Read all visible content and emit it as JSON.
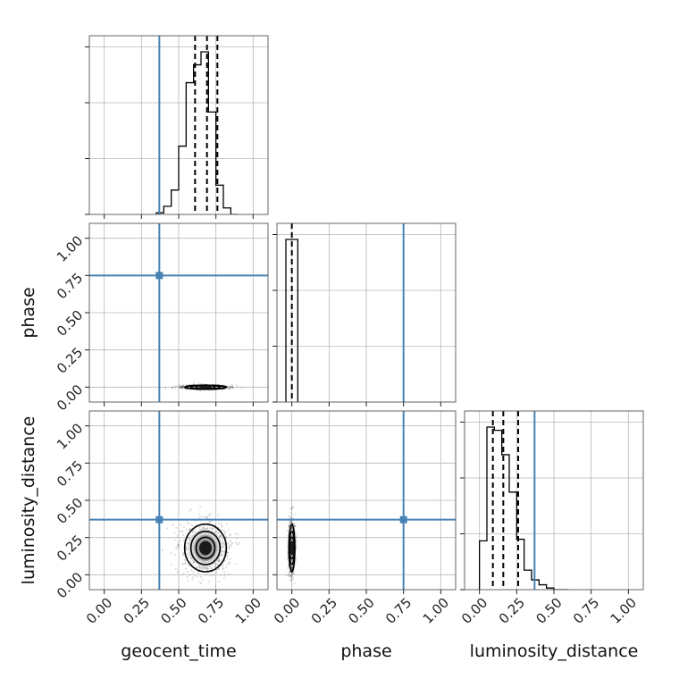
{
  "chart_data": {
    "type": "corner",
    "parameters": [
      "geocent_time",
      "phase",
      "luminosity_distance"
    ],
    "axis_range": [
      -0.1,
      1.1
    ],
    "tick_values": [
      0.0,
      0.25,
      0.5,
      0.75,
      1.0
    ],
    "tick_labels": [
      "0.00",
      "0.25",
      "0.50",
      "0.75",
      "1.00"
    ],
    "truth_values": {
      "geocent_time": 0.37,
      "phase": 0.75,
      "luminosity_distance": 0.37
    },
    "truth_color": "#4682b4",
    "grid": true,
    "marginals": [
      {
        "parameter": "geocent_time",
        "bin_edges": [
          0.35,
          0.4,
          0.45,
          0.5,
          0.55,
          0.6,
          0.65,
          0.7,
          0.75,
          0.8,
          0.85,
          0.9
        ],
        "counts": [
          0.01,
          0.05,
          0.15,
          0.42,
          0.81,
          0.92,
          1.0,
          0.63,
          0.18,
          0.04,
          0.0
        ],
        "quantiles": [
          0.61,
          0.69,
          0.76
        ]
      },
      {
        "parameter": "phase",
        "bin_edges": [
          -0.04,
          0.0,
          0.04
        ],
        "counts": [
          1.0,
          1.0
        ],
        "quantiles": [
          0.0
        ]
      },
      {
        "parameter": "luminosity_distance",
        "bin_edges": [
          0.0,
          0.05,
          0.1,
          0.15,
          0.2,
          0.25,
          0.3,
          0.35,
          0.4,
          0.45,
          0.5,
          0.55,
          0.6
        ],
        "counts": [
          0.3,
          1.0,
          0.98,
          0.83,
          0.6,
          0.31,
          0.12,
          0.06,
          0.03,
          0.01,
          0.0,
          0.0
        ],
        "quantiles": [
          0.09,
          0.16,
          0.26
        ]
      }
    ],
    "joint": [
      {
        "x": "geocent_time",
        "y": "phase",
        "center": [
          0.68,
          0.0
        ],
        "spread": [
          0.07,
          0.004
        ]
      },
      {
        "x": "geocent_time",
        "y": "luminosity_distance",
        "center": [
          0.68,
          0.18
        ],
        "spread": [
          0.07,
          0.08
        ]
      },
      {
        "x": "phase",
        "y": "luminosity_distance",
        "center": [
          0.0,
          0.18
        ],
        "spread": [
          0.01,
          0.08
        ]
      }
    ]
  }
}
